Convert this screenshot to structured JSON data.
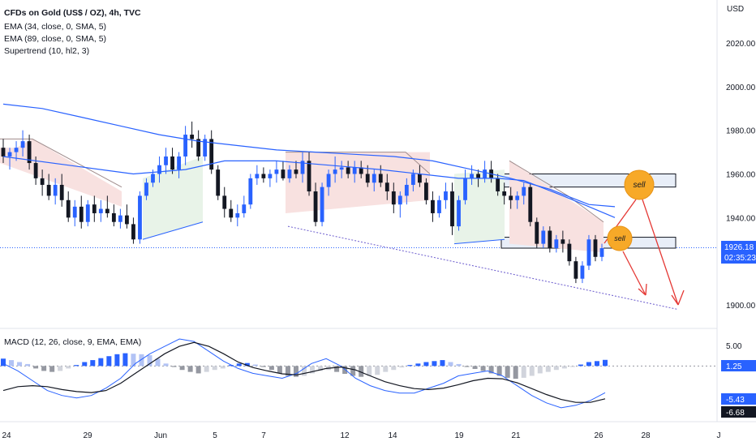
{
  "legend": {
    "title": "CFDs on Gold (US$ / OZ), 4h, TVC",
    "ema34": "EMA (34, close, 0, SMA, 5)",
    "ema89": "EMA (89, close, 0, SMA, 5)",
    "supertrend": "Supertrend (10, hl2, 3)",
    "macd": "MACD (12, 26, close, 9, EMA, EMA)"
  },
  "currency": "USD",
  "price_axis": {
    "ticks": [
      "2020.00",
      "2000.00",
      "1980.00",
      "1960.00",
      "1940.00",
      "1900.00"
    ],
    "current_price": "1926.18",
    "countdown": "02:35:23"
  },
  "macd_axis": {
    "ticks": [
      "5.00"
    ],
    "tags": [
      "1.25",
      "-5.43",
      "-6.68"
    ]
  },
  "time_axis": [
    "24",
    "29",
    "Jun",
    "5",
    "7",
    "12",
    "14",
    "19",
    "21",
    "26",
    "28",
    "J"
  ],
  "annotations": {
    "sell_upper": "sell",
    "sell_lower": "sell"
  },
  "colors": {
    "up": "#2962ff",
    "down": "#131722",
    "ema34": "#2962ff",
    "ema89": "#2962ff",
    "arrow": "#e53935",
    "sell_fill": "#f7a928",
    "supertrend_bull_fill": "#e8f3e8",
    "supertrend_bear_fill": "#f8e1e0",
    "zone_fill": "#e8eef8"
  },
  "chart_data": {
    "type": "candlestick",
    "price_range": [
      1896,
      2030
    ],
    "last_price": 1926.18,
    "ohlc": [
      [
        1972,
        1976,
        1965,
        1968
      ],
      [
        1968,
        1972,
        1962,
        1970
      ],
      [
        1970,
        1975,
        1966,
        1972
      ],
      [
        1972,
        1980,
        1968,
        1975
      ],
      [
        1975,
        1978,
        1962,
        1965
      ],
      [
        1965,
        1968,
        1955,
        1958
      ],
      [
        1958,
        1962,
        1950,
        1955
      ],
      [
        1955,
        1960,
        1948,
        1950
      ],
      [
        1950,
        1958,
        1946,
        1955
      ],
      [
        1955,
        1960,
        1945,
        1948
      ],
      [
        1948,
        1952,
        1938,
        1940
      ],
      [
        1940,
        1948,
        1936,
        1945
      ],
      [
        1945,
        1950,
        1935,
        1938
      ],
      [
        1938,
        1948,
        1936,
        1946
      ],
      [
        1946,
        1950,
        1938,
        1942
      ],
      [
        1942,
        1948,
        1938,
        1944
      ],
      [
        1944,
        1950,
        1940,
        1942
      ],
      [
        1942,
        1946,
        1936,
        1938
      ],
      [
        1938,
        1944,
        1935,
        1941
      ],
      [
        1941,
        1946,
        1935,
        1937
      ],
      [
        1937,
        1940,
        1928,
        1930
      ],
      [
        1930,
        1952,
        1928,
        1950
      ],
      [
        1950,
        1958,
        1948,
        1956
      ],
      [
        1956,
        1962,
        1954,
        1960
      ],
      [
        1960,
        1968,
        1956,
        1964
      ],
      [
        1964,
        1972,
        1960,
        1968
      ],
      [
        1968,
        1972,
        1960,
        1962
      ],
      [
        1962,
        1970,
        1958,
        1968
      ],
      [
        1968,
        1982,
        1964,
        1978
      ],
      [
        1978,
        1984,
        1972,
        1976
      ],
      [
        1976,
        1980,
        1966,
        1968
      ],
      [
        1968,
        1978,
        1966,
        1976
      ],
      [
        1976,
        1980,
        1960,
        1962
      ],
      [
        1962,
        1964,
        1948,
        1950
      ],
      [
        1950,
        1954,
        1940,
        1944
      ],
      [
        1944,
        1948,
        1938,
        1940
      ],
      [
        1940,
        1946,
        1936,
        1942
      ],
      [
        1942,
        1950,
        1940,
        1946
      ],
      [
        1946,
        1960,
        1944,
        1958
      ],
      [
        1958,
        1964,
        1955,
        1960
      ],
      [
        1960,
        1963,
        1956,
        1958
      ],
      [
        1958,
        1962,
        1954,
        1960
      ],
      [
        1960,
        1966,
        1956,
        1962
      ],
      [
        1962,
        1966,
        1957,
        1958
      ],
      [
        1958,
        1964,
        1956,
        1962
      ],
      [
        1962,
        1966,
        1958,
        1960
      ],
      [
        1960,
        1970,
        1956,
        1966
      ],
      [
        1966,
        1970,
        1950,
        1952
      ],
      [
        1952,
        1956,
        1936,
        1938
      ],
      [
        1938,
        1956,
        1936,
        1954
      ],
      [
        1954,
        1962,
        1950,
        1960
      ],
      [
        1960,
        1968,
        1956,
        1962
      ],
      [
        1962,
        1966,
        1958,
        1963
      ],
      [
        1963,
        1966,
        1958,
        1960
      ],
      [
        1960,
        1966,
        1956,
        1963
      ],
      [
        1963,
        1966,
        1958,
        1960
      ],
      [
        1960,
        1964,
        1954,
        1956
      ],
      [
        1956,
        1962,
        1952,
        1960
      ],
      [
        1960,
        1964,
        1954,
        1956
      ],
      [
        1956,
        1960,
        1948,
        1952
      ],
      [
        1952,
        1956,
        1942,
        1946
      ],
      [
        1946,
        1952,
        1940,
        1950
      ],
      [
        1950,
        1958,
        1946,
        1955
      ],
      [
        1955,
        1962,
        1952,
        1960
      ],
      [
        1960,
        1964,
        1954,
        1956
      ],
      [
        1956,
        1958,
        1946,
        1948
      ],
      [
        1948,
        1952,
        1938,
        1942
      ],
      [
        1942,
        1950,
        1940,
        1948
      ],
      [
        1948,
        1956,
        1944,
        1952
      ],
      [
        1952,
        1956,
        1932,
        1936
      ],
      [
        1936,
        1950,
        1934,
        1948
      ],
      [
        1948,
        1962,
        1946,
        1958
      ],
      [
        1958,
        1964,
        1955,
        1960
      ],
      [
        1960,
        1962,
        1954,
        1958
      ],
      [
        1958,
        1966,
        1956,
        1962
      ],
      [
        1962,
        1966,
        1956,
        1958
      ],
      [
        1958,
        1960,
        1950,
        1952
      ],
      [
        1952,
        1956,
        1946,
        1950
      ],
      [
        1950,
        1954,
        1944,
        1948
      ],
      [
        1948,
        1952,
        1944,
        1950
      ],
      [
        1950,
        1956,
        1946,
        1954
      ],
      [
        1954,
        1956,
        1936,
        1938
      ],
      [
        1938,
        1940,
        1926,
        1928
      ],
      [
        1928,
        1936,
        1926,
        1934
      ],
      [
        1934,
        1936,
        1924,
        1926
      ],
      [
        1926,
        1932,
        1924,
        1930
      ],
      [
        1930,
        1934,
        1924,
        1928
      ],
      [
        1928,
        1930,
        1918,
        1920
      ],
      [
        1920,
        1922,
        1910,
        1912
      ],
      [
        1912,
        1920,
        1910,
        1918
      ],
      [
        1918,
        1932,
        1916,
        1930
      ],
      [
        1930,
        1932,
        1920,
        1922
      ],
      [
        1922,
        1928,
        1920,
        1926
      ]
    ],
    "ema34_path": [
      [
        0,
        1992
      ],
      [
        6,
        1990
      ],
      [
        12,
        1986
      ],
      [
        18,
        1982
      ],
      [
        24,
        1978
      ],
      [
        30,
        1975
      ],
      [
        36,
        1973
      ],
      [
        42,
        1971
      ],
      [
        48,
        1970
      ],
      [
        54,
        1969
      ],
      [
        60,
        1968
      ],
      [
        66,
        1966
      ],
      [
        72,
        1962
      ],
      [
        78,
        1958
      ],
      [
        84,
        1953
      ],
      [
        90,
        1946
      ],
      [
        94,
        1945
      ]
    ],
    "ema89_path": [
      [
        0,
        1968
      ],
      [
        10,
        1964
      ],
      [
        20,
        1960
      ],
      [
        28,
        1962
      ],
      [
        34,
        1966
      ],
      [
        42,
        1966
      ],
      [
        50,
        1964
      ],
      [
        58,
        1962
      ],
      [
        64,
        1960
      ],
      [
        70,
        1958
      ],
      [
        76,
        1958
      ],
      [
        80,
        1957
      ],
      [
        86,
        1950
      ],
      [
        94,
        1940
      ]
    ],
    "sell_zones": [
      [
        1954,
        1960
      ],
      [
        1926,
        1931
      ]
    ],
    "trendline": [
      [
        1936,
        1946
      ],
      [
        1904,
        1896
      ]
    ],
    "macd": {
      "range": [
        -11,
        6
      ],
      "hist": [
        1.5,
        1.2,
        0.8,
        0.4,
        -0.5,
        -1.0,
        -1.2,
        -1.0,
        -0.5,
        0.2,
        0.8,
        1.2,
        1.6,
        2.0,
        2.4,
        2.6,
        2.5,
        2.4,
        2.2,
        1.5,
        0.5,
        -0.2,
        -0.8,
        -1.2,
        -1.5,
        -1.2,
        -0.8,
        -0.5,
        0.2,
        0.5,
        0.6,
        0.3,
        -0.2,
        -0.8,
        -1.5,
        -2.0,
        -2.2,
        -2.0,
        -1.5,
        -1.0,
        -0.8,
        -1.2,
        -1.6,
        -2.0,
        -2.2,
        -2.0,
        -1.8,
        -1.2,
        -0.8,
        -0.3,
        0.2,
        0.5,
        0.8,
        1.0,
        1.2,
        0.8,
        0.4,
        -0.2,
        -0.6,
        -1.0,
        -1.5,
        -2.0,
        -2.4,
        -2.6,
        -2.4,
        -2.0,
        -1.5,
        -1.2,
        -0.8,
        -0.5,
        -0.2,
        0.3,
        0.8,
        1.0,
        1.25
      ],
      "macd_line": [
        0.5,
        -1,
        -3,
        -5,
        -6,
        -6.5,
        -6,
        -4.5,
        -2.5,
        0.5,
        2.5,
        4,
        5.5,
        5,
        3,
        1,
        -0.5,
        -1.5,
        -2,
        -2.5,
        -1.5,
        0.5,
        1.5,
        0,
        -2.5,
        -4,
        -5,
        -5.5,
        -5.5,
        -4.5,
        -3.5,
        -2,
        -1.5,
        -1,
        -2,
        -4,
        -6,
        -7.5,
        -8.5,
        -8,
        -7,
        -5.43
      ],
      "signal_line": [
        -5,
        -4.2,
        -4,
        -4.2,
        -4.8,
        -5.2,
        -5.4,
        -5,
        -3.5,
        -1.5,
        0.5,
        2.5,
        4,
        4.8,
        4,
        2.5,
        0.8,
        -0.3,
        -1,
        -1.6,
        -1.8,
        -1.2,
        -0.5,
        -0.2,
        -0.8,
        -2,
        -3.2,
        -4,
        -4.6,
        -4.8,
        -4.5,
        -3.8,
        -3,
        -2.5,
        -2.6,
        -3.4,
        -4.6,
        -5.8,
        -6.8,
        -7.4,
        -7.4,
        -6.68
      ]
    }
  }
}
